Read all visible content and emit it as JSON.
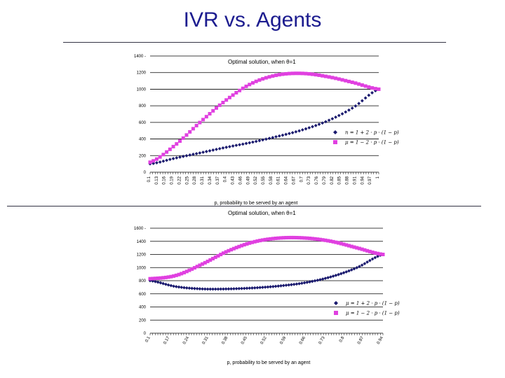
{
  "slide": {
    "title": "IVR vs. Agents"
  },
  "colors": {
    "navy": "#1a1a6e",
    "magenta": "#e040e0",
    "title": "#1c1c8f"
  },
  "chart_data": [
    {
      "type": "line",
      "title": "Optimal solution, when θ=1",
      "xlabel": "p, probability to be served by an agent",
      "ylabel": "",
      "ylim": [
        0,
        1400
      ],
      "yticks": [
        0,
        200,
        400,
        600,
        800,
        1000,
        1200,
        1400
      ],
      "ytick_labels": [
        "0",
        "200",
        "400",
        "600",
        "800",
        "1000",
        "1200",
        "1400 -"
      ],
      "x_range": [
        0.1,
        1
      ],
      "xtick_labels": [
        "0.1",
        "0.13",
        "0.16",
        "0.19",
        "0.22",
        "0.25",
        "0.28",
        "0.31",
        "0.34",
        "0.37",
        "0.4",
        "0.43",
        "0.46",
        "0.49",
        "0.52",
        "0.55",
        "0.58",
        "0.61",
        "0.64",
        "0.67",
        "0.7",
        "0.73",
        "0.76",
        "0.79",
        "0.82",
        "0.85",
        "0.88",
        "0.91",
        "0.94",
        "0.97",
        "1"
      ],
      "grid": true,
      "legend": "right",
      "series": [
        {
          "name": "n = 1 + 2 · p · (1 − p)",
          "marker": "diamond",
          "color": "#1a1a6e",
          "x": [
            0.1,
            0.2,
            0.3,
            0.4,
            0.5,
            0.6,
            0.7,
            0.8,
            0.9,
            1.0
          ],
          "values": [
            100,
            170,
            235,
            300,
            360,
            430,
            510,
            620,
            780,
            1000
          ]
        },
        {
          "name": "μ = 1 − 2 · p · (1 − p)",
          "marker": "square",
          "color": "#e040e0",
          "x": [
            0.1,
            0.2,
            0.3,
            0.4,
            0.5,
            0.6,
            0.7,
            0.8,
            0.9,
            1.0
          ],
          "values": [
            120,
            330,
            610,
            870,
            1070,
            1170,
            1190,
            1150,
            1080,
            1000
          ]
        }
      ]
    },
    {
      "type": "line",
      "title": "Optimal solution, when θ=1",
      "xlabel": "p, probability to be served by an agent",
      "ylabel": "",
      "ylim": [
        0,
        1600
      ],
      "yticks": [
        0,
        200,
        400,
        600,
        800,
        1000,
        1200,
        1400,
        1600
      ],
      "ytick_labels": [
        "0",
        "200",
        "400",
        "600",
        "800",
        "1000",
        "1200",
        "1400",
        "1600 -"
      ],
      "x_range": [
        0.1,
        1
      ],
      "xtick_labels": [
        "0.1",
        "0.17",
        "0.24",
        "0.31",
        "0.38",
        "0.45",
        "0.52",
        "0.59",
        "0.66",
        "0.73",
        "0.8",
        "0.87",
        "0.94"
      ],
      "grid": true,
      "legend": "bottom-right",
      "series": [
        {
          "name": "μ = 1 + 2 · p · (1 − p)",
          "marker": "diamond",
          "color": "#1a1a6e",
          "x": [
            0.1,
            0.2,
            0.3,
            0.4,
            0.5,
            0.6,
            0.7,
            0.8,
            0.9,
            1.0
          ],
          "values": [
            800,
            710,
            675,
            675,
            690,
            720,
            770,
            860,
            1000,
            1200
          ]
        },
        {
          "name": "μ = 1 − 2 · p · (1 − p)",
          "marker": "square",
          "color": "#e040e0",
          "x": [
            0.1,
            0.2,
            0.3,
            0.4,
            0.5,
            0.6,
            0.7,
            0.8,
            0.9,
            1.0
          ],
          "values": [
            830,
            880,
            1050,
            1250,
            1390,
            1450,
            1450,
            1400,
            1300,
            1200
          ]
        }
      ]
    }
  ]
}
